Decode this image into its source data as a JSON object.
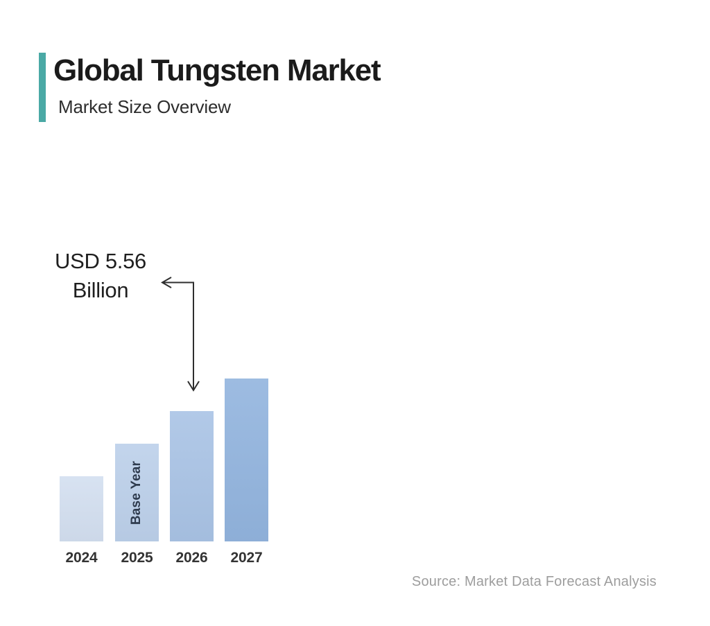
{
  "header": {
    "title": "Global Tungsten Market",
    "subtitle": "Market Size Overview",
    "accent_color": "#4AA9A5"
  },
  "annotation": {
    "line1": "USD 5.56",
    "line2": "Billion",
    "arrow_color": "#2E2E2E",
    "points_to_category": "2026"
  },
  "source": "Source: Market Data Forecast Analysis",
  "chart_data": {
    "type": "bar",
    "title": "Global Tungsten Market",
    "subtitle": "Market Size Overview",
    "categories": [
      "2024",
      "2025",
      "2026",
      "2027"
    ],
    "values_usd_billion_estimated": [
      2.78,
      4.17,
      5.56,
      6.95
    ],
    "labeled_point": {
      "category": "2026",
      "label": "USD 5.56 Billion"
    },
    "base_year_category": "2025",
    "base_year_label": "Base Year",
    "bar_colors": [
      "#D3DFF0",
      "#BCD0EA",
      "#A9C3E5",
      "#92B4DE"
    ],
    "xlabel": "",
    "ylabel": "",
    "ylim": [
      0,
      7.5
    ],
    "grid": false,
    "legend": false,
    "source": "Source: Market Data Forecast Analysis"
  }
}
